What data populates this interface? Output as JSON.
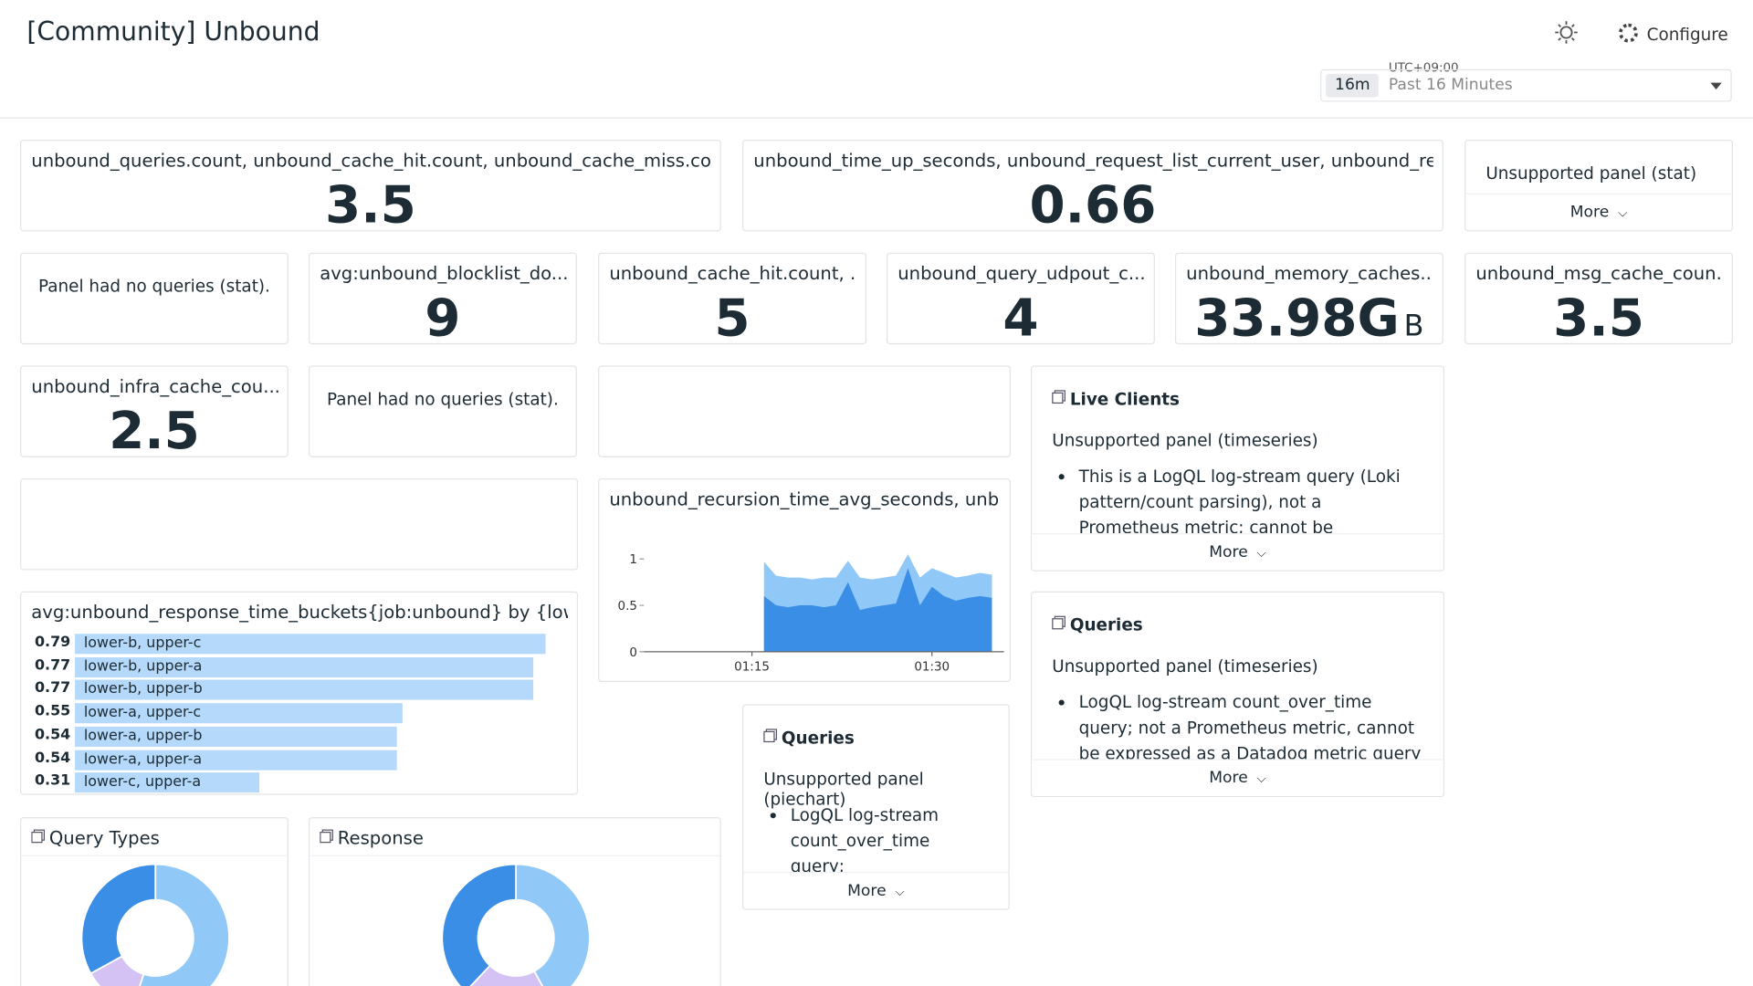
{
  "header": {
    "title": "[Community] Unbound",
    "configure": "Configure",
    "timezone": "UTC+09:00",
    "range_chip": "16m",
    "range": "Past 16 Minutes"
  },
  "panels": [
    {
      "kind": "stat",
      "title": "unbound_queries.count, unbound_cache_hit.count, unbound_cache_miss.cou...",
      "value": 3.5
    },
    {
      "kind": "stat",
      "title": "unbound_time_up_seconds, unbound_request_list_current_user, unbound_rec...",
      "value": 0.66
    },
    {
      "kind": "unsupported-stat",
      "note": "Unsupported panel (stat)",
      "more": "More"
    },
    {
      "kind": "note",
      "note": "Panel had no queries (stat)."
    },
    {
      "kind": "stat",
      "title": "avg:unbound_blocklist_do...",
      "value": 9
    },
    {
      "kind": "stat",
      "title": "unbound_cache_hit.count, ...",
      "value": 5
    },
    {
      "kind": "stat",
      "title": "unbound_query_udpout_c...",
      "value": 4
    },
    {
      "kind": "stat",
      "title": "unbound_memory_caches...",
      "value": 33.98,
      "value_label": "33.98G",
      "unit": "B"
    },
    {
      "kind": "stat",
      "title": "unbound_msg_cache_coun...",
      "value": 3.5
    },
    {
      "kind": "stat",
      "title": "unbound_infra_cache_cou...",
      "value": 2.5
    },
    {
      "kind": "note",
      "note": "Panel had no queries (stat)."
    },
    {
      "kind": "empty"
    },
    {
      "kind": "unsupported",
      "title": "Live Clients",
      "subtitle": "Unsupported panel (timeseries)",
      "bullet": "This is a LogQL log-stream query (Loki pattern/count parsing), not a Prometheus metric; cannot be expressed as a Datadog",
      "more": "More"
    },
    {
      "kind": "empty"
    },
    {
      "kind": "timeseries",
      "title": "unbound_recursion_time_avg_seconds, unb...",
      "chart_data": {
        "type": "area",
        "x": [
          "01:16",
          "01:17",
          "01:18",
          "01:19",
          "01:20",
          "01:21",
          "01:22",
          "01:23",
          "01:24",
          "01:25",
          "01:26",
          "01:27",
          "01:28",
          "01:29",
          "01:30",
          "01:31",
          "01:32",
          "01:33",
          "01:34",
          "01:35"
        ],
        "series": [
          {
            "color": "#90c8f8",
            "values": [
              0.97,
              0.82,
              0.8,
              0.8,
              0.78,
              0.8,
              0.8,
              0.98,
              0.8,
              0.78,
              0.8,
              0.82,
              1.05,
              0.8,
              0.9,
              0.85,
              0.8,
              0.82,
              0.85,
              0.83
            ]
          },
          {
            "color": "#3a8ee6",
            "values": [
              0.6,
              0.5,
              0.48,
              0.5,
              0.5,
              0.48,
              0.5,
              0.75,
              0.45,
              0.48,
              0.5,
              0.52,
              0.9,
              0.5,
              0.7,
              0.6,
              0.55,
              0.58,
              0.6,
              0.58
            ]
          }
        ],
        "xlim": [
          "01:06",
          "01:36"
        ],
        "xticks": [
          "01:15",
          "01:30"
        ],
        "ylim": [
          0,
          1.1
        ],
        "yticks": [
          0,
          0.5,
          1
        ]
      }
    },
    {
      "kind": "unsupported",
      "title": "Queries",
      "subtitle": "Unsupported panel (timeseries)",
      "bullet": "LogQL log-stream count_over_time query; not a Prometheus metric, cannot be expressed as a Datadog metric query",
      "more": "More"
    },
    {
      "kind": "bars",
      "title": "avg:unbound_response_time_buckets{job:unbound} by {low...",
      "chart_data": {
        "type": "bar",
        "orientation": "horizontal",
        "color": "#b5d9fb",
        "categories": [
          "lower-b, upper-c",
          "lower-b, upper-a",
          "lower-b, upper-b",
          "lower-a, upper-c",
          "lower-a, upper-b",
          "lower-a, upper-a",
          "lower-c, upper-a"
        ],
        "values": [
          0.79,
          0.77,
          0.77,
          0.55,
          0.54,
          0.54,
          0.31
        ],
        "xlim": [
          0,
          0.8
        ]
      }
    },
    {
      "kind": "unsupported",
      "title": "Queries",
      "subtitle": "Unsupported panel (piechart)",
      "bullet": "LogQL log-stream count_over_time query;",
      "more": "More"
    },
    {
      "kind": "pie",
      "title": "Query Types",
      "chart_data": {
        "type": "pie",
        "values": [
          55,
          12,
          33
        ],
        "colors": [
          "#90c8f8",
          "#d4c2f5",
          "#3a8ee6"
        ]
      }
    },
    {
      "kind": "pie",
      "title": "Response",
      "chart_data": {
        "type": "pie",
        "values": [
          42,
          20,
          38
        ],
        "colors": [
          "#90c8f8",
          "#d4c2f5",
          "#3a8ee6"
        ]
      }
    }
  ]
}
